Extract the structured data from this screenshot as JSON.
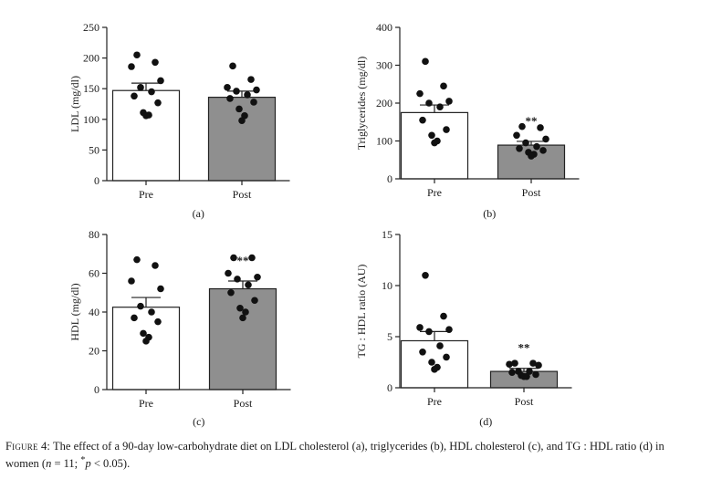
{
  "caption": {
    "lead": "Figure 4:",
    "text": "The effect of a 90-day low-carbohydrate diet on LDL cholesterol (a), triglycerides (b), HDL cholesterol (c), and TG : HDL ratio (d) in women (",
    "n_var": "n",
    "n_text": " = 11; ",
    "star": "*",
    "p_var": "p",
    "p_text": " < 0.05)."
  },
  "chart_data": [
    {
      "panel": "(a)",
      "type": "bar",
      "categories": [
        "Pre",
        "Post"
      ],
      "values": [
        147,
        136
      ],
      "errors": [
        12,
        10
      ],
      "bar_colors": [
        "#ffffff",
        "#8f8f8f"
      ],
      "ylabel": "LDL (mg/dl)",
      "ylim": [
        0,
        250
      ],
      "yticks": [
        0,
        50,
        100,
        150,
        200,
        250
      ],
      "points": [
        [
          205,
          193,
          186,
          163,
          152,
          145,
          138,
          127,
          111,
          107,
          106
        ],
        [
          187,
          165,
          152,
          148,
          146,
          140,
          134,
          128,
          117,
          106,
          98
        ]
      ],
      "significance": [
        "",
        ""
      ]
    },
    {
      "panel": "(b)",
      "type": "bar",
      "categories": [
        "Pre",
        "Post"
      ],
      "values": [
        175,
        89
      ],
      "errors": [
        20,
        10
      ],
      "bar_colors": [
        "#ffffff",
        "#8f8f8f"
      ],
      "ylabel": "Triglycerides (mg/dl)",
      "ylim": [
        0,
        400
      ],
      "yticks": [
        0,
        100,
        200,
        300,
        400
      ],
      "points": [
        [
          310,
          245,
          225,
          205,
          200,
          190,
          155,
          130,
          115,
          100,
          95
        ],
        [
          138,
          135,
          115,
          105,
          95,
          85,
          80,
          75,
          70,
          65,
          60
        ]
      ],
      "significance": [
        "",
        "**"
      ]
    },
    {
      "panel": "(c)",
      "type": "bar",
      "categories": [
        "Pre",
        "Post"
      ],
      "values": [
        42.5,
        52
      ],
      "errors": [
        5,
        4
      ],
      "bar_colors": [
        "#ffffff",
        "#8f8f8f"
      ],
      "ylabel": "HDL (mg/dl)",
      "ylim": [
        0,
        80
      ],
      "yticks": [
        0,
        20,
        40,
        60,
        80
      ],
      "points": [
        [
          67,
          64,
          56,
          52,
          43,
          40,
          37,
          35,
          29,
          27,
          25
        ],
        [
          68,
          68,
          60,
          58,
          57,
          54,
          50,
          46,
          42,
          40,
          37
        ]
      ],
      "significance": [
        "",
        "**"
      ]
    },
    {
      "panel": "(d)",
      "type": "bar",
      "categories": [
        "Pre",
        "Post"
      ],
      "values": [
        4.6,
        1.6
      ],
      "errors": [
        0.9,
        0.3
      ],
      "bar_colors": [
        "#ffffff",
        "#8f8f8f"
      ],
      "ylabel": "TG : HDL ratio (AU)",
      "ylim": [
        0,
        15
      ],
      "yticks": [
        0,
        5,
        10,
        15
      ],
      "points": [
        [
          11.0,
          7.0,
          5.9,
          5.7,
          5.5,
          4.1,
          3.5,
          3.0,
          2.5,
          2.0,
          1.8
        ],
        [
          2.4,
          2.4,
          2.3,
          2.2,
          1.6,
          1.6,
          1.5,
          1.3,
          1.2,
          1.1,
          1.1
        ]
      ],
      "significance": [
        "",
        "**"
      ]
    }
  ]
}
